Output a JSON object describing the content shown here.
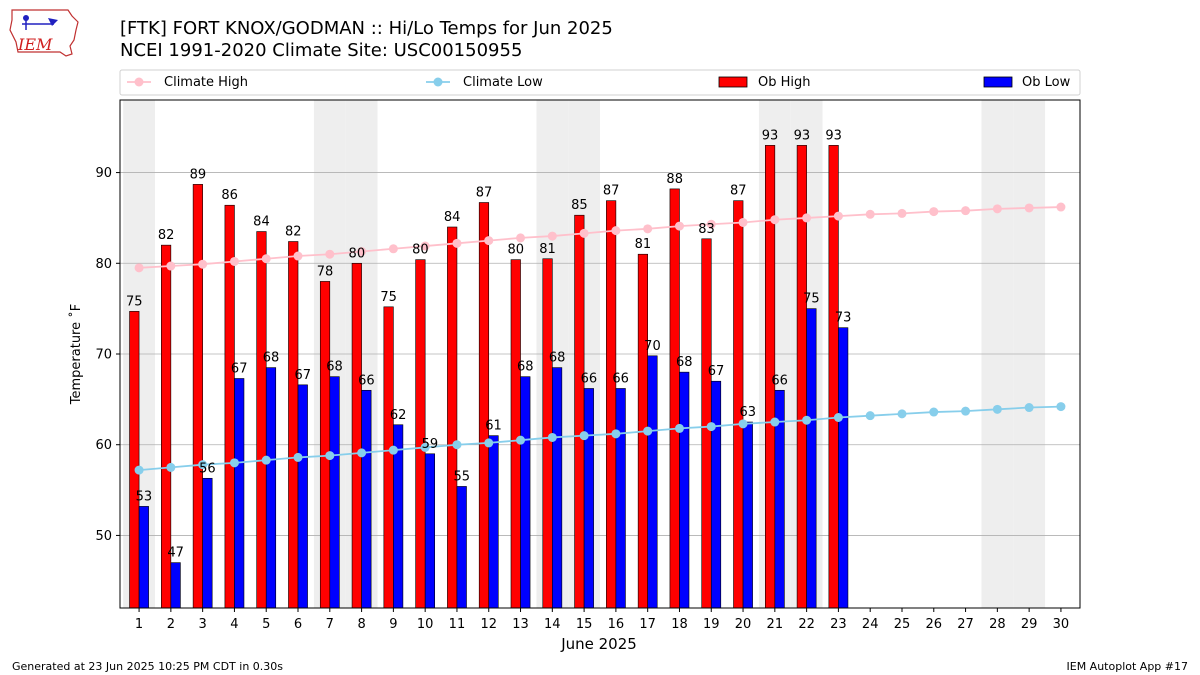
{
  "header": {
    "title_line1": "[FTK] FORT KNOX/GODMAN :: Hi/Lo Temps for Jun 2025",
    "title_line2": "NCEI 1991-2020 Climate Site: USC00150955"
  },
  "logo": {
    "text": "IEM"
  },
  "footer": {
    "generated": "Generated at 23 Jun 2025 10:25 PM CDT in 0.30s",
    "app": "IEM Autoplot App #17"
  },
  "legend": {
    "climate_high": "Climate High",
    "climate_low": "Climate Low",
    "ob_high": "Ob High",
    "ob_low": "Ob Low"
  },
  "colors": {
    "climate_high": "#ffc0cb",
    "climate_low": "#87ceeb",
    "ob_high": "#ff0000",
    "ob_low": "#0000ff",
    "weekend_shade": "#eeeeee",
    "grid": "#b0b0b0"
  },
  "chart_data": {
    "type": "bar",
    "xlabel": "June 2025",
    "ylabel": "Temperature ˚F",
    "x": [
      1,
      2,
      3,
      4,
      5,
      6,
      7,
      8,
      9,
      10,
      11,
      12,
      13,
      14,
      15,
      16,
      17,
      18,
      19,
      20,
      21,
      22,
      23,
      24,
      25,
      26,
      27,
      28,
      29,
      30
    ],
    "ylim": [
      42,
      98
    ],
    "yticks": [
      50,
      60,
      70,
      80,
      90
    ],
    "grid": true,
    "legend_position": "top",
    "weekend_days": [
      1,
      7,
      8,
      14,
      15,
      21,
      22,
      28,
      29
    ],
    "ob_high": [
      74.7,
      82,
      88.7,
      86.4,
      83.5,
      82.4,
      78,
      80,
      75.2,
      80.4,
      84,
      86.7,
      80.4,
      80.5,
      85.3,
      86.9,
      81,
      88.2,
      82.7,
      86.9,
      93,
      93,
      93
    ],
    "ob_high_labels": [
      "75",
      "82",
      "89",
      "86",
      "84",
      "82",
      "78",
      "80",
      "75",
      "80",
      "84",
      "87",
      "80",
      "81",
      "85",
      "87",
      "81",
      "88",
      "83",
      "87",
      "93",
      "93",
      "93"
    ],
    "ob_low": [
      53.2,
      47,
      56.3,
      67.3,
      68.5,
      66.6,
      67.5,
      66,
      62.2,
      59,
      55.4,
      61,
      67.5,
      68.5,
      66.2,
      66.2,
      69.8,
      68,
      67,
      62.5,
      66,
      75,
      72.9
    ],
    "ob_low_labels": [
      "53",
      "47",
      "56",
      "67",
      "68",
      "67",
      "68",
      "66",
      "62",
      "59",
      "55",
      "61",
      "68",
      "68",
      "66",
      "66",
      "70",
      "68",
      "67",
      "63",
      "66",
      "75",
      "73"
    ],
    "climate_high": [
      79.5,
      79.7,
      79.9,
      80.2,
      80.5,
      80.8,
      81.0,
      81.3,
      81.6,
      81.9,
      82.2,
      82.5,
      82.8,
      83.0,
      83.3,
      83.6,
      83.8,
      84.1,
      84.3,
      84.5,
      84.8,
      85.0,
      85.2,
      85.4,
      85.5,
      85.7,
      85.8,
      86.0,
      86.1,
      86.2
    ],
    "climate_low": [
      57.2,
      57.5,
      57.8,
      58.0,
      58.3,
      58.6,
      58.8,
      59.1,
      59.4,
      59.7,
      60.0,
      60.2,
      60.5,
      60.8,
      61.0,
      61.2,
      61.5,
      61.8,
      62.0,
      62.3,
      62.5,
      62.7,
      63.0,
      63.2,
      63.4,
      63.6,
      63.7,
      63.9,
      64.1,
      64.2
    ]
  }
}
